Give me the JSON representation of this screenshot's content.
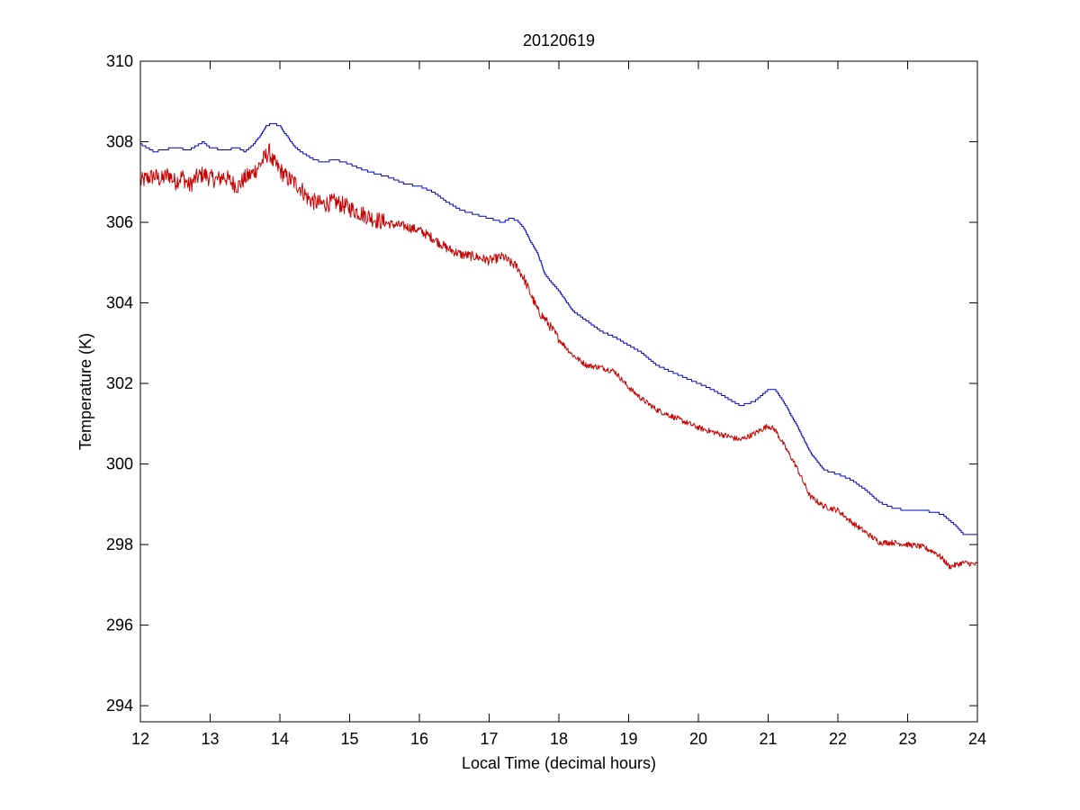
{
  "chart_data": {
    "type": "line",
    "title": "20120619",
    "xlabel": "Local Time (decimal hours)",
    "ylabel": "Temperature (K)",
    "xlim": [
      12,
      24
    ],
    "ylim": [
      293.6,
      310
    ],
    "xticks": [
      12,
      13,
      14,
      15,
      16,
      17,
      18,
      19,
      20,
      21,
      22,
      23,
      24
    ],
    "yticks": [
      294,
      296,
      298,
      300,
      302,
      304,
      306,
      308,
      310
    ],
    "grid": false,
    "legend": "none",
    "series": [
      {
        "color": "#0000c8",
        "line_style": "stepped",
        "x": [
          12.0,
          12.1,
          12.2,
          12.3,
          12.5,
          12.7,
          12.8,
          12.9,
          13.0,
          13.2,
          13.4,
          13.5,
          13.6,
          13.7,
          13.8,
          13.9,
          14.0,
          14.05,
          14.1,
          14.2,
          14.3,
          14.4,
          14.5,
          14.6,
          14.8,
          15.0,
          15.2,
          15.4,
          15.6,
          15.8,
          16.0,
          16.2,
          16.4,
          16.6,
          16.8,
          17.0,
          17.2,
          17.3,
          17.4,
          17.5,
          17.6,
          17.7,
          17.8,
          18.0,
          18.2,
          18.4,
          18.6,
          18.8,
          19.0,
          19.2,
          19.4,
          19.6,
          19.8,
          20.0,
          20.2,
          20.4,
          20.6,
          20.8,
          20.9,
          21.0,
          21.1,
          21.2,
          21.4,
          21.6,
          21.8,
          22.0,
          22.2,
          22.4,
          22.6,
          22.8,
          23.0,
          23.2,
          23.4,
          23.5,
          23.6,
          23.7,
          23.8,
          24.0
        ],
        "y": [
          307.95,
          307.85,
          307.75,
          307.8,
          307.85,
          307.8,
          307.9,
          308.0,
          307.85,
          307.8,
          307.85,
          307.75,
          307.9,
          308.1,
          308.4,
          308.45,
          308.4,
          308.25,
          308.15,
          307.9,
          307.75,
          307.65,
          307.55,
          307.5,
          307.55,
          307.45,
          307.3,
          307.2,
          307.1,
          306.95,
          306.9,
          306.75,
          306.5,
          306.3,
          306.2,
          306.1,
          306.0,
          306.1,
          306.05,
          305.85,
          305.5,
          305.2,
          304.7,
          304.3,
          303.8,
          303.55,
          303.3,
          303.15,
          302.95,
          302.75,
          302.45,
          302.3,
          302.15,
          302.0,
          301.85,
          301.65,
          301.45,
          301.55,
          301.7,
          301.85,
          301.85,
          301.6,
          301.0,
          300.3,
          299.85,
          299.75,
          299.6,
          299.35,
          299.05,
          298.9,
          298.85,
          298.85,
          298.8,
          298.75,
          298.6,
          298.45,
          298.25,
          298.25
        ]
      },
      {
        "color": "#c80000",
        "line_style": "noisy",
        "x": [
          12.0,
          12.1,
          12.2,
          12.3,
          12.4,
          12.5,
          12.6,
          12.7,
          12.8,
          12.9,
          13.0,
          13.1,
          13.2,
          13.3,
          13.4,
          13.5,
          13.6,
          13.7,
          13.8,
          13.85,
          13.9,
          14.0,
          14.1,
          14.2,
          14.3,
          14.4,
          14.5,
          14.6,
          14.8,
          15.0,
          15.2,
          15.4,
          15.6,
          15.8,
          16.0,
          16.2,
          16.4,
          16.6,
          16.8,
          17.0,
          17.2,
          17.3,
          17.4,
          17.5,
          17.6,
          17.7,
          17.8,
          18.0,
          18.2,
          18.4,
          18.6,
          18.8,
          19.0,
          19.2,
          19.4,
          19.6,
          19.8,
          20.0,
          20.2,
          20.4,
          20.6,
          20.8,
          20.9,
          21.0,
          21.1,
          21.2,
          21.4,
          21.6,
          21.8,
          22.0,
          22.2,
          22.4,
          22.6,
          22.8,
          23.0,
          23.2,
          23.4,
          23.5,
          23.6,
          23.7,
          23.8,
          24.0
        ],
        "y": [
          307.0,
          307.1,
          307.15,
          307.05,
          307.2,
          307.0,
          307.15,
          306.9,
          307.1,
          307.2,
          307.1,
          307.05,
          307.15,
          307.0,
          306.9,
          307.1,
          307.2,
          307.4,
          307.65,
          307.75,
          307.5,
          307.3,
          307.1,
          307.0,
          306.85,
          306.6,
          306.5,
          306.45,
          306.5,
          306.35,
          306.2,
          306.05,
          305.95,
          305.9,
          305.8,
          305.6,
          305.35,
          305.2,
          305.15,
          305.05,
          305.15,
          305.0,
          304.9,
          304.6,
          304.2,
          303.8,
          303.6,
          303.1,
          302.7,
          302.45,
          302.4,
          302.3,
          301.9,
          301.6,
          301.35,
          301.2,
          301.05,
          300.9,
          300.8,
          300.7,
          300.6,
          300.75,
          300.85,
          300.95,
          300.85,
          300.55,
          299.95,
          299.2,
          298.95,
          298.85,
          298.55,
          298.3,
          298.05,
          298.05,
          298.0,
          297.95,
          297.8,
          297.65,
          297.45,
          297.5,
          297.55,
          297.5
        ]
      }
    ]
  }
}
